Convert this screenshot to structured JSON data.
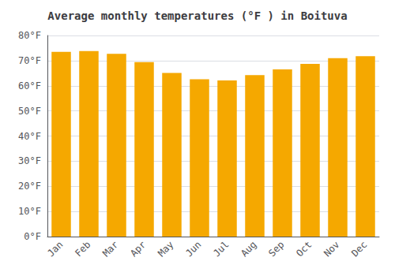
{
  "chart_data": {
    "type": "bar",
    "title": "Average monthly temperatures (°F ) in Boituva",
    "categories": [
      "Jan",
      "Feb",
      "Mar",
      "Apr",
      "May",
      "Jun",
      "Jul",
      "Aug",
      "Sep",
      "Oct",
      "Nov",
      "Dec"
    ],
    "values": [
      73.5,
      73.8,
      72.7,
      69.4,
      65.1,
      62.6,
      62.1,
      64.2,
      66.5,
      68.7,
      71.0,
      71.8
    ],
    "color": "#F5A800",
    "ylim": [
      0,
      80
    ],
    "yticks": [
      {
        "value": 0,
        "label": "0°F"
      },
      {
        "value": 10,
        "label": "10°F"
      },
      {
        "value": 20,
        "label": "20°F"
      },
      {
        "value": 30,
        "label": "30°F"
      },
      {
        "value": 40,
        "label": "40°F"
      },
      {
        "value": 50,
        "label": "50°F"
      },
      {
        "value": 60,
        "label": "60°F"
      },
      {
        "value": 70,
        "label": "70°F"
      },
      {
        "value": 80,
        "label": "80°F"
      }
    ],
    "grid": true
  }
}
